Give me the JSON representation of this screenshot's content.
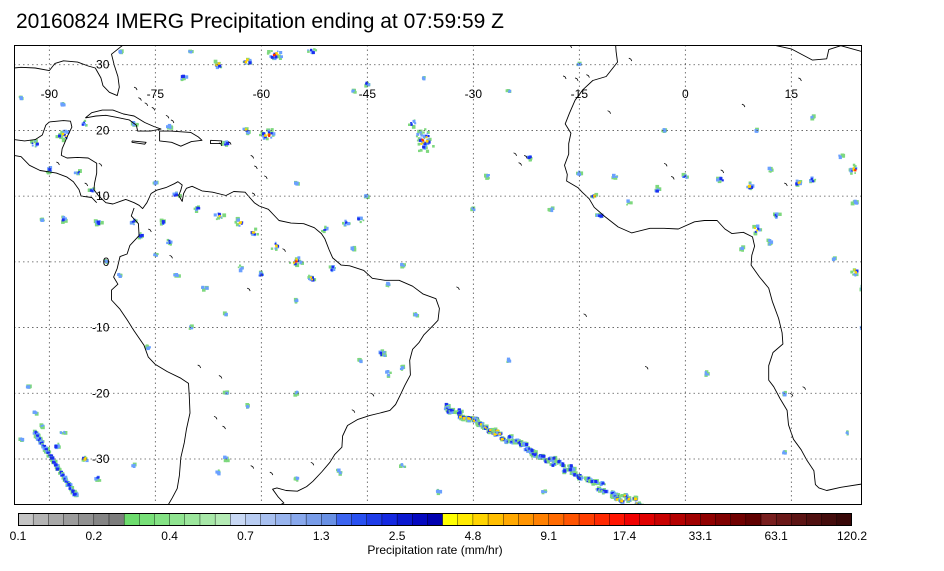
{
  "title": "20160824 IMERG Precipitation ending at 07:59:59 Z",
  "map": {
    "lon_labels": [
      "-90",
      "-75",
      "-60",
      "-45",
      "-30",
      "-15",
      "0",
      "15"
    ],
    "lat_labels": [
      "30",
      "20",
      "10",
      "0",
      "-10",
      "-20",
      "-30"
    ],
    "lon_range": [
      -95,
      25
    ],
    "lat_range": [
      -37,
      33
    ],
    "grid": "dotted",
    "colors": {
      "coast": "#000000",
      "grid": "#555555",
      "frame": "#000000"
    }
  },
  "colorbar": {
    "label": "Precipitation rate (mm/hr)",
    "tick_labels": [
      "0.1",
      "0.2",
      "0.4",
      "0.7",
      "1.3",
      "2.5",
      "4.8",
      "9.1",
      "17.4",
      "33.1",
      "63.1",
      "120.2"
    ],
    "colors": [
      "#c4c4c4",
      "#b4b4b4",
      "#a8a8a8",
      "#9c9c9c",
      "#909090",
      "#848484",
      "#7c7c7c",
      "#6ddc6d",
      "#78e078",
      "#84e284",
      "#90e490",
      "#9ce69c",
      "#a8e8a8",
      "#b4eab4",
      "#c8d8f4",
      "#b8ccf2",
      "#a8c0f0",
      "#98b4ee",
      "#88a8ec",
      "#789ce8",
      "#6890e4",
      "#3c64f0",
      "#2850f0",
      "#1e3ce8",
      "#1428e0",
      "#0a18d0",
      "#0408c0",
      "#0000b0",
      "#ffff00",
      "#ffea00",
      "#ffd400",
      "#ffbe00",
      "#ffa800",
      "#ff9400",
      "#ff8000",
      "#ff6a00",
      "#ff5400",
      "#ff3e00",
      "#ff2800",
      "#ff1400",
      "#f00000",
      "#e00000",
      "#c80000",
      "#b40000",
      "#a00000",
      "#900000",
      "#800000",
      "#700000",
      "#600000",
      "#781e1e",
      "#6a1818",
      "#5c1414",
      "#501010",
      "#440c0c",
      "#380808"
    ]
  },
  "precip_colors": {
    "light": "#7ed87e",
    "moderate": "#6aa0ff",
    "heavy": "#1a2ef0",
    "intense": "#ffd400",
    "extreme": "#ff3000"
  }
}
